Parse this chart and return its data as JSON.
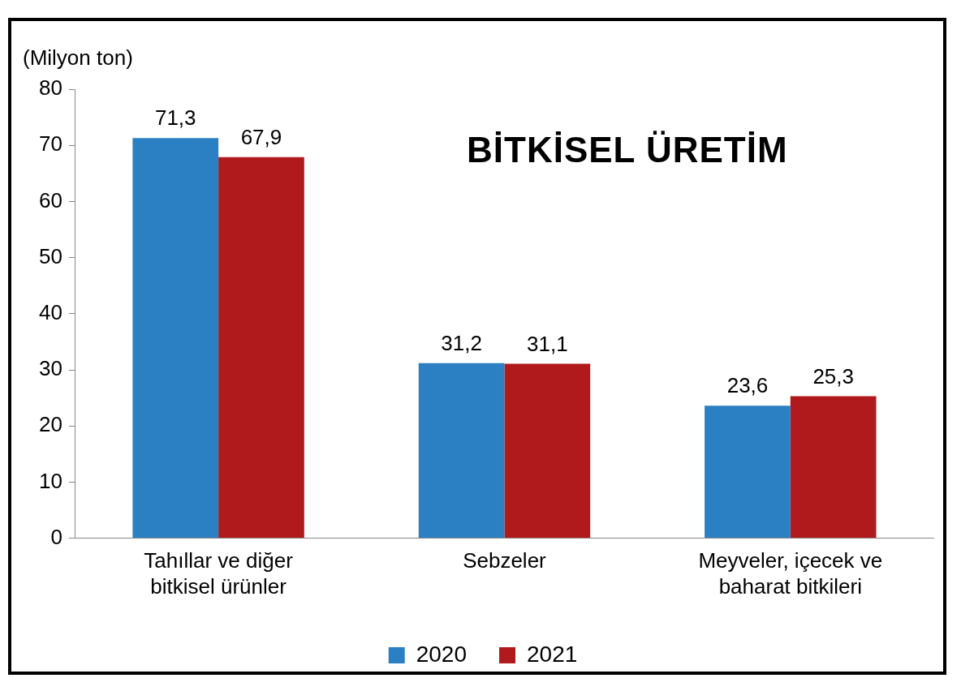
{
  "chart_data": {
    "type": "bar",
    "title": "BİTKİSEL ÜRETİM",
    "ylabel": "(Milyon ton)",
    "categories": [
      "Tahıllar ve diğer bitkisel ürünler",
      "Sebzeler",
      "Meyveler, içecek ve baharat bitkileri"
    ],
    "series": [
      {
        "name": "2020",
        "color": "#2b7fc3",
        "values": [
          71.3,
          31.2,
          23.6
        ],
        "value_labels": [
          "71,3",
          "31,2",
          "23,6"
        ]
      },
      {
        "name": "2021",
        "color": "#b11a1d",
        "values": [
          67.9,
          31.1,
          25.3
        ],
        "value_labels": [
          "67,9",
          "31,1",
          "25,3"
        ]
      }
    ],
    "ylim": [
      0,
      80
    ],
    "yticks": [
      0,
      10,
      20,
      30,
      40,
      50,
      60,
      70,
      80
    ],
    "grid": false,
    "legend": "bottom"
  }
}
